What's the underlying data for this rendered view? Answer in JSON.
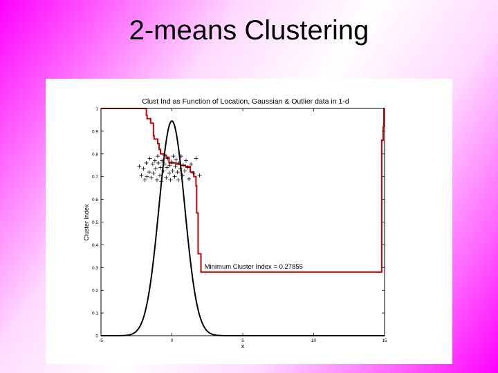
{
  "slide": {
    "title": "2-means Clustering"
  },
  "chart_data": {
    "type": "line",
    "title": "Clust Ind as Function of Location, Gaussian & Outlier data in 1-d",
    "xlabel": "x",
    "ylabel": "Cluster Index",
    "xlim": [
      -5,
      15
    ],
    "ylim": [
      0,
      1
    ],
    "x_ticks": [
      -5,
      0,
      5,
      10,
      15
    ],
    "y_ticks": [
      0,
      0.1,
      0.2,
      0.3,
      0.4,
      0.5,
      0.6,
      0.7,
      0.8,
      0.9,
      1
    ],
    "x_tick_labels": [
      "-5",
      "0",
      "5",
      "10",
      "15"
    ],
    "y_tick_labels": [
      "0",
      "0.1",
      "0.2",
      "0.3",
      "0.4",
      "0.5",
      "0.6",
      "0.7",
      "0.8",
      "0.9",
      "1"
    ],
    "grid": false,
    "annotation": {
      "text": "Minimum Cluster Index = 0.27855",
      "x": 2.3,
      "y": 0.295
    },
    "series": [
      {
        "kind": "step",
        "color": "#cc0000",
        "x": [
          -5,
          -1.8,
          -1.8,
          -1.75,
          -1.75,
          -1.5,
          -1.5,
          -1.3,
          -1.3,
          -1.25,
          -1.25,
          -1,
          -1,
          -0.9,
          -0.9,
          -0.8,
          -0.8,
          -0.55,
          -0.55,
          -0.4,
          -0.4,
          -0.2,
          -0.2,
          0,
          0,
          0.3,
          0.3,
          0.6,
          0.6,
          0.95,
          0.95,
          1.3,
          1.3,
          1.55,
          1.55,
          1.7,
          1.7,
          1.75,
          1.75,
          1.85,
          1.85,
          2.05,
          2.05,
          14.8,
          14.8,
          14.9,
          14.9,
          14.95,
          14.95,
          15
        ],
        "y": [
          1,
          1,
          0.97,
          0.97,
          0.955,
          0.955,
          0.935,
          0.935,
          0.88,
          0.88,
          0.865,
          0.865,
          0.845,
          0.845,
          0.82,
          0.82,
          0.8,
          0.8,
          0.795,
          0.795,
          0.785,
          0.785,
          0.76,
          0.76,
          0.76,
          0.76,
          0.755,
          0.755,
          0.75,
          0.75,
          0.745,
          0.745,
          0.72,
          0.72,
          0.7,
          0.7,
          0.66,
          0.66,
          0.54,
          0.54,
          0.36,
          0.36,
          0.28,
          0.28,
          0.86,
          0.86,
          0.92,
          0.92,
          1,
          1
        ]
      },
      {
        "kind": "gaussian",
        "color": "#000000",
        "mean": 0,
        "sd": 0.9,
        "peak": 0.945,
        "x_range": [
          -5,
          15
        ]
      }
    ],
    "scatter": {
      "marker": "+",
      "color": "#000000",
      "points": [
        [
          -2.3,
          0.745
        ],
        [
          -2.15,
          0.705
        ],
        [
          -2.0,
          0.735
        ],
        [
          -1.9,
          0.685
        ],
        [
          -1.8,
          0.76
        ],
        [
          -1.75,
          0.7
        ],
        [
          -1.6,
          0.72
        ],
        [
          -1.55,
          0.78
        ],
        [
          -1.45,
          0.695
        ],
        [
          -1.35,
          0.755
        ],
        [
          -1.3,
          0.715
        ],
        [
          -1.2,
          0.77
        ],
        [
          -1.15,
          0.735
        ],
        [
          -1.05,
          0.685
        ],
        [
          -1.0,
          0.79
        ],
        [
          -0.95,
          0.76
        ],
        [
          -0.85,
          0.705
        ],
        [
          -0.8,
          0.74
        ],
        [
          -0.75,
          0.68
        ],
        [
          -0.7,
          0.77
        ],
        [
          -0.6,
          0.725
        ],
        [
          -0.55,
          0.795
        ],
        [
          -0.5,
          0.755
        ],
        [
          -0.4,
          0.695
        ],
        [
          -0.35,
          0.74
        ],
        [
          -0.3,
          0.78
        ],
        [
          -0.2,
          0.715
        ],
        [
          -0.15,
          0.75
        ],
        [
          -0.1,
          0.685
        ],
        [
          0.0,
          0.765
        ],
        [
          0.05,
          0.725
        ],
        [
          0.1,
          0.79
        ],
        [
          0.2,
          0.7
        ],
        [
          0.25,
          0.745
        ],
        [
          0.3,
          0.775
        ],
        [
          0.4,
          0.72
        ],
        [
          0.45,
          0.685
        ],
        [
          0.5,
          0.76
        ],
        [
          0.6,
          0.735
        ],
        [
          0.65,
          0.79
        ],
        [
          0.75,
          0.705
        ],
        [
          0.8,
          0.75
        ],
        [
          0.9,
          0.725
        ],
        [
          1.0,
          0.77
        ],
        [
          1.1,
          0.74
        ],
        [
          1.2,
          0.69
        ],
        [
          1.35,
          0.755
        ],
        [
          1.5,
          0.715
        ],
        [
          1.7,
          0.78
        ],
        [
          1.95,
          0.705
        ]
      ]
    }
  }
}
